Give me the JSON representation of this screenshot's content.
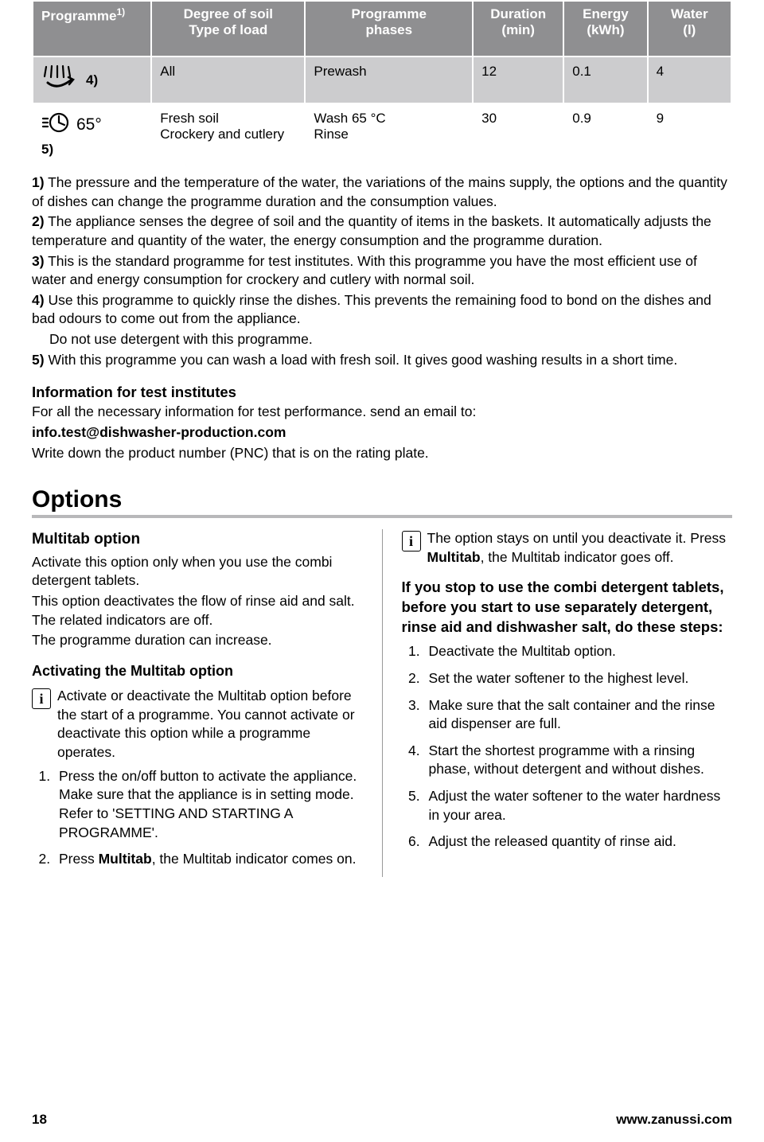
{
  "table": {
    "headers": [
      "Programme",
      "Degree of soil\nType of load",
      "Programme\nphases",
      "Duration\n(min)",
      "Energy\n(kWh)",
      "Water\n(l)"
    ],
    "header_superscript": "1)",
    "col_widths": [
      "17%",
      "22%",
      "24%",
      "13%",
      "12%",
      "12%"
    ],
    "rows": [
      {
        "icon": "prewash",
        "icon_super": "4)",
        "soil": "All",
        "phases": "Prewash",
        "duration": "12",
        "energy": "0.1",
        "water": "4",
        "bg": "#ccccce"
      },
      {
        "icon": "quick65",
        "icon_label": "65°",
        "icon_super": "5)",
        "soil": "Fresh soil\nCrockery and cutlery",
        "phases": "Wash 65 °C\nRinse",
        "duration": "30",
        "energy": "0.9",
        "water": "9",
        "bg": "#ffffff"
      }
    ]
  },
  "footnotes": [
    {
      "n": "1)",
      "text": "The pressure and the temperature of the water, the variations of the mains supply, the options and the quantity of dishes can change the programme duration and the consumption values."
    },
    {
      "n": "2)",
      "text": "The appliance senses the degree of soil and the quantity of items in the baskets. It automatically adjusts the temperature and quantity of the water, the energy consumption and the programme duration."
    },
    {
      "n": "3)",
      "text": "This is the standard programme for test institutes. With this programme you have the most efficient use of water and energy consumption for crockery and cutlery with normal soil."
    },
    {
      "n": "4)",
      "text": "Use this programme to quickly rinse the dishes. This prevents the remaining food to bond on the dishes and bad odours to come out from the appliance.",
      "extra": "Do not use detergent with this programme."
    },
    {
      "n": "5)",
      "text": "With this programme you can wash a load with fresh soil. It gives good washing results in a short time."
    }
  ],
  "test_info": {
    "title": "Information for test institutes",
    "line1": "For all the necessary information for test performance. send an email to:",
    "email": "info.test@dishwasher-production.com",
    "line2": "Write down the product number (PNC) that is on the rating plate."
  },
  "options_heading": "Options",
  "left": {
    "h3": "Multitab option",
    "p1": "Activate this option only when you use the combi detergent tablets.",
    "p2": "This option deactivates the flow of rinse aid and salt. The related indicators are off.",
    "p3": "The programme duration can increase.",
    "h4": "Activating the Multitab option",
    "info": "Activate or deactivate the Multitab option before the start of a programme. You cannot activate or deactivate this option while a programme operates.",
    "steps": [
      "Press the on/off button to activate the appliance. Make sure that the appliance is in setting mode. Refer to 'SETTING AND STARTING A PROGRAMME'.",
      "Press |Multitab|, the Multitab indicator comes on."
    ]
  },
  "right": {
    "info_a": "The option stays on until you deactivate it.",
    "info_b_pre": "Press ",
    "info_b_bold": "Multitab",
    "info_b_post": ", the Multitab indicator goes off.",
    "h4": "If you stop to use the combi detergent tablets, before you start to use separately detergent, rinse aid and dishwasher salt, do these steps:",
    "steps": [
      "Deactivate the Multitab option.",
      "Set the water softener to the highest level.",
      "Make sure that the salt container and the rinse aid dispenser are full.",
      "Start the shortest programme with a rinsing phase, without detergent and without dishes.",
      "Adjust the water softener to the water hardness in your area.",
      "Adjust the released quantity of rinse aid."
    ]
  },
  "footer": {
    "page": "18",
    "url": "www.zanussi.com"
  },
  "colors": {
    "header_bg": "#8f8f91",
    "row_alt_bg": "#ccccce",
    "rule": "#b8b8ba"
  }
}
